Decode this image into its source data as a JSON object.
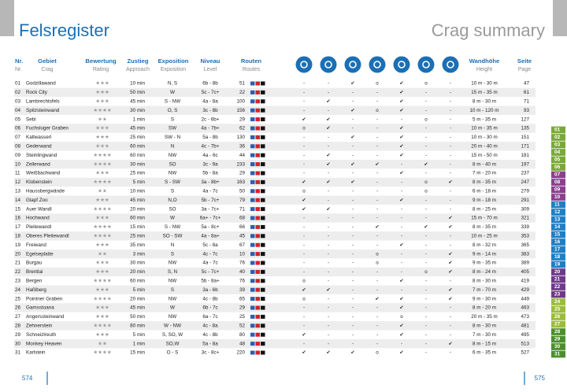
{
  "header": {
    "title": "Felsregister",
    "subtitle": "Crag summary"
  },
  "table": {
    "columns": [
      [
        "Nr.",
        "Nr."
      ],
      [
        "Gebiet",
        "Crag"
      ],
      [
        "Bewertung",
        "Rating"
      ],
      [
        "Zustieg",
        "Approach"
      ],
      [
        "Exposition",
        "Exposition"
      ],
      [
        "Niveau",
        "Level"
      ],
      [
        "Routen",
        "Routes"
      ],
      [
        "Wandhöhe",
        "Height"
      ],
      [
        "Seite",
        "Page"
      ]
    ],
    "rows": [
      [
        "01",
        "Godzillawand",
        "★★★",
        "10 min",
        "N, S",
        "6b - 8b",
        51,
        "-",
        "-",
        "✔",
        "o",
        "✔",
        "o",
        "-",
        "10 m - 30 m",
        47
      ],
      [
        "02",
        "Rock City",
        "★★★",
        "50 min",
        "W",
        "5c - 7c+",
        22,
        "-",
        "-",
        "-",
        "-",
        "✔",
        "-",
        "-",
        "15 m - 35 m",
        61
      ],
      [
        "03",
        "Lambrechtsfels",
        "★★★",
        "45 min",
        "S - NW",
        "4a - 8a",
        100,
        "-",
        "✔",
        "-",
        "-",
        "✔",
        "-",
        "-",
        "8 m - 30 m",
        71
      ],
      [
        "04",
        "Spitzsteinwand",
        "★★★★",
        "30 min",
        "O, S",
        "3c - 8b",
        156,
        "-",
        "-",
        "✔",
        "o",
        "✔",
        "-",
        "-",
        "10 m - 120 m",
        93
      ],
      [
        "05",
        "Sebi",
        "★★",
        "1 min",
        "S",
        "2c - 6b+",
        29,
        "✔",
        "✔",
        "-",
        "-",
        "-",
        "o",
        "-",
        "5 m - 35 m",
        127
      ],
      [
        "06",
        "Fuchsluger Graben",
        "★★★",
        "45 min",
        "SW",
        "4a - 7b+",
        62,
        "o",
        "✔",
        "-",
        "-",
        "✔",
        "-",
        "-",
        "10 m - 35 m",
        135
      ],
      [
        "07",
        "Kaltwasserl",
        "★★★",
        "25 min",
        "SW - N",
        "5a - 8b",
        130,
        "-",
        "-",
        "✔",
        "-",
        "✔",
        "-",
        "-",
        "10 m - 30 m",
        151
      ],
      [
        "08",
        "Gederwand",
        "★★★",
        "60 min",
        "N",
        "4c - 7b+",
        36,
        "-",
        "-",
        "-",
        "-",
        "✔",
        "-",
        "-",
        "20 m - 40 m",
        171
      ],
      [
        "09",
        "Steinlingwand",
        "★★★★",
        "60 min",
        "NW",
        "4a - 6c",
        44,
        "-",
        "✔",
        "-",
        "-",
        "✔",
        "-",
        "-",
        "15 m - 50 m",
        181
      ],
      [
        "10",
        "Zellerwand",
        "★★★★",
        "30 min",
        "SO",
        "3c - 9a",
        233,
        "-",
        "✔",
        "✔",
        "✔",
        "-",
        "✔",
        "-",
        "8 m - 40 m",
        197
      ],
      [
        "11",
        "Weißbachwand",
        "★★★",
        "25 min",
        "NW",
        "5b - 8a",
        29,
        "-",
        "-",
        "-",
        "-",
        "✔",
        "-",
        "-",
        "7 m - 20 m",
        237
      ],
      [
        "12",
        "Klobenstein",
        "★★★★",
        "5 min",
        "S - SW",
        "3a - 8b+",
        163,
        "✔",
        "✔",
        "✔",
        "-",
        "-",
        "o",
        "✔",
        "8 m - 35 m",
        247
      ],
      [
        "13",
        "Haussbergwände",
        "★★",
        "10 min",
        "S",
        "4a - 7c",
        50,
        "o",
        "-",
        "-",
        "-",
        "-",
        "o",
        "-",
        "6 m - 18 m",
        279
      ],
      [
        "14",
        "Glapf Zoo",
        "★★★",
        "45 min",
        "N,O",
        "5b - 7c+",
        79,
        "✔",
        "-",
        "-",
        "-",
        "✔",
        "-",
        "-",
        "9 m - 18 m",
        291
      ],
      [
        "15",
        "Auer Wandl",
        "★★★★",
        "20 min",
        "SO",
        "3a - 7c+",
        71,
        "✔",
        "✔",
        "-",
        "-",
        "-",
        "-",
        "-",
        "8 m - 25 m",
        309
      ],
      [
        "16",
        "Hochwand",
        "★★★",
        "60 min",
        "W",
        "6a+ - 7c+",
        68,
        "-",
        "-",
        "-",
        "-",
        "-",
        "-",
        "✔",
        "15 m - 70 m",
        321
      ],
      [
        "17",
        "Pleitewandl",
        "★★★★",
        "15 min",
        "S - NW",
        "5a - 8c+",
        66,
        "-",
        "-",
        "-",
        "✔",
        "-",
        "✔",
        "✔",
        "8 m - 35 m",
        339
      ],
      [
        "18",
        "Oberes Pleitewandl",
        "★★★★",
        "25 min",
        "SO - SW",
        "4a - 8a+",
        45,
        "-",
        "-",
        "-",
        "-",
        "-",
        "-",
        "-",
        "10 m - 25 m",
        353
      ],
      [
        "19",
        "Freiwand",
        "★★★",
        "35 min",
        "N",
        "5c - 8a",
        67,
        "-",
        "-",
        "-",
        "-",
        "✔",
        "-",
        "-",
        "8 m - 32 m",
        365
      ],
      [
        "20",
        "Egelseplatte",
        "★★",
        "3 min",
        "S",
        "4c - 7c",
        10,
        "-",
        "-",
        "-",
        "o",
        "-",
        "-",
        "✔",
        "9 m - 14 m",
        383
      ],
      [
        "21",
        "Burgau",
        "★★★",
        "30 min",
        "NW",
        "4a - 7c",
        76,
        "-",
        "-",
        "-",
        "o",
        "-",
        "-",
        "✔",
        "9 m - 35 m",
        389
      ],
      [
        "22",
        "Brentlai",
        "★★★",
        "20 min",
        "S, N",
        "5c - 7c+",
        40,
        "-",
        "-",
        "-",
        "-",
        "-",
        "o",
        "✔",
        "8 m - 24 m",
        405
      ],
      [
        "23",
        "Bergen",
        "★★★★",
        "60 min",
        "NW",
        "5b - 8a+",
        76,
        "o",
        "-",
        "-",
        "-",
        "✔",
        "-",
        "-",
        "8 m - 30 m",
        419
      ],
      [
        "24",
        "Haßlberg",
        "★★★",
        "5 min",
        "S",
        "3a - 6b",
        39,
        "✔",
        "✔",
        "-",
        "-",
        "-",
        "-",
        "✔",
        "7 m - 70 m",
        429
      ],
      [
        "25",
        "Pointner Graben",
        "★★★★",
        "20 min",
        "NW",
        "4c - 8b",
        65,
        "o",
        "-",
        "-",
        "✔",
        "✔",
        "-",
        "✔",
        "9 m - 30 m",
        449
      ],
      [
        "26",
        "Gamsstoana",
        "★★★",
        "45 min",
        "W",
        "6b - 7c",
        29,
        "-",
        "-",
        "-",
        "-",
        "✔",
        "-",
        "-",
        "8 m - 20 m",
        463
      ],
      [
        "27",
        "Angerssteinwand",
        "★★★",
        "50 min",
        "NW",
        "6a - 7c",
        25,
        "-",
        "-",
        "-",
        "-",
        "o",
        "-",
        "-",
        "20 m - 35 m",
        473
      ],
      [
        "28",
        "Zehnerstein",
        "★★★★",
        "80 min",
        "W - NW",
        "4c - 8a",
        52,
        "-",
        "-",
        "-",
        "-",
        "✔",
        "-",
        "-",
        "8 m - 30 m",
        481
      ],
      [
        "29",
        "Schneizlreuth",
        "★★★",
        "5 min",
        "S, SO, W",
        "4c - 8b",
        80,
        "✔",
        "-",
        "-",
        "-",
        "✔",
        "-",
        "-",
        "7 m - 30 m",
        495
      ],
      [
        "30",
        "Monkey Heaven",
        "★★",
        "1 min",
        "SO,W",
        "5a - 8a",
        48,
        "-",
        "-",
        "-",
        "-",
        "-",
        "-",
        "✔",
        "8 m - 15 m",
        513
      ],
      [
        "31",
        "Karlstein",
        "★★★★",
        "15 min",
        "O - S",
        "3c - 8c+",
        220,
        "✔",
        "✔",
        "✔",
        "o",
        "✔",
        "-",
        "-",
        "6 m - 35 m",
        527
      ]
    ]
  },
  "tabs": [
    "01",
    "02",
    "03",
    "04",
    "05",
    "06",
    "07",
    "08",
    "09",
    "10",
    "11",
    "12",
    "13",
    "14",
    "15",
    "16",
    "17",
    "18",
    "19",
    "20",
    "21",
    "22",
    "23",
    "24",
    "25",
    "26",
    "27",
    "28",
    "29",
    "30",
    "31"
  ],
  "footer": {
    "left_page": "574",
    "right_page": "575"
  }
}
